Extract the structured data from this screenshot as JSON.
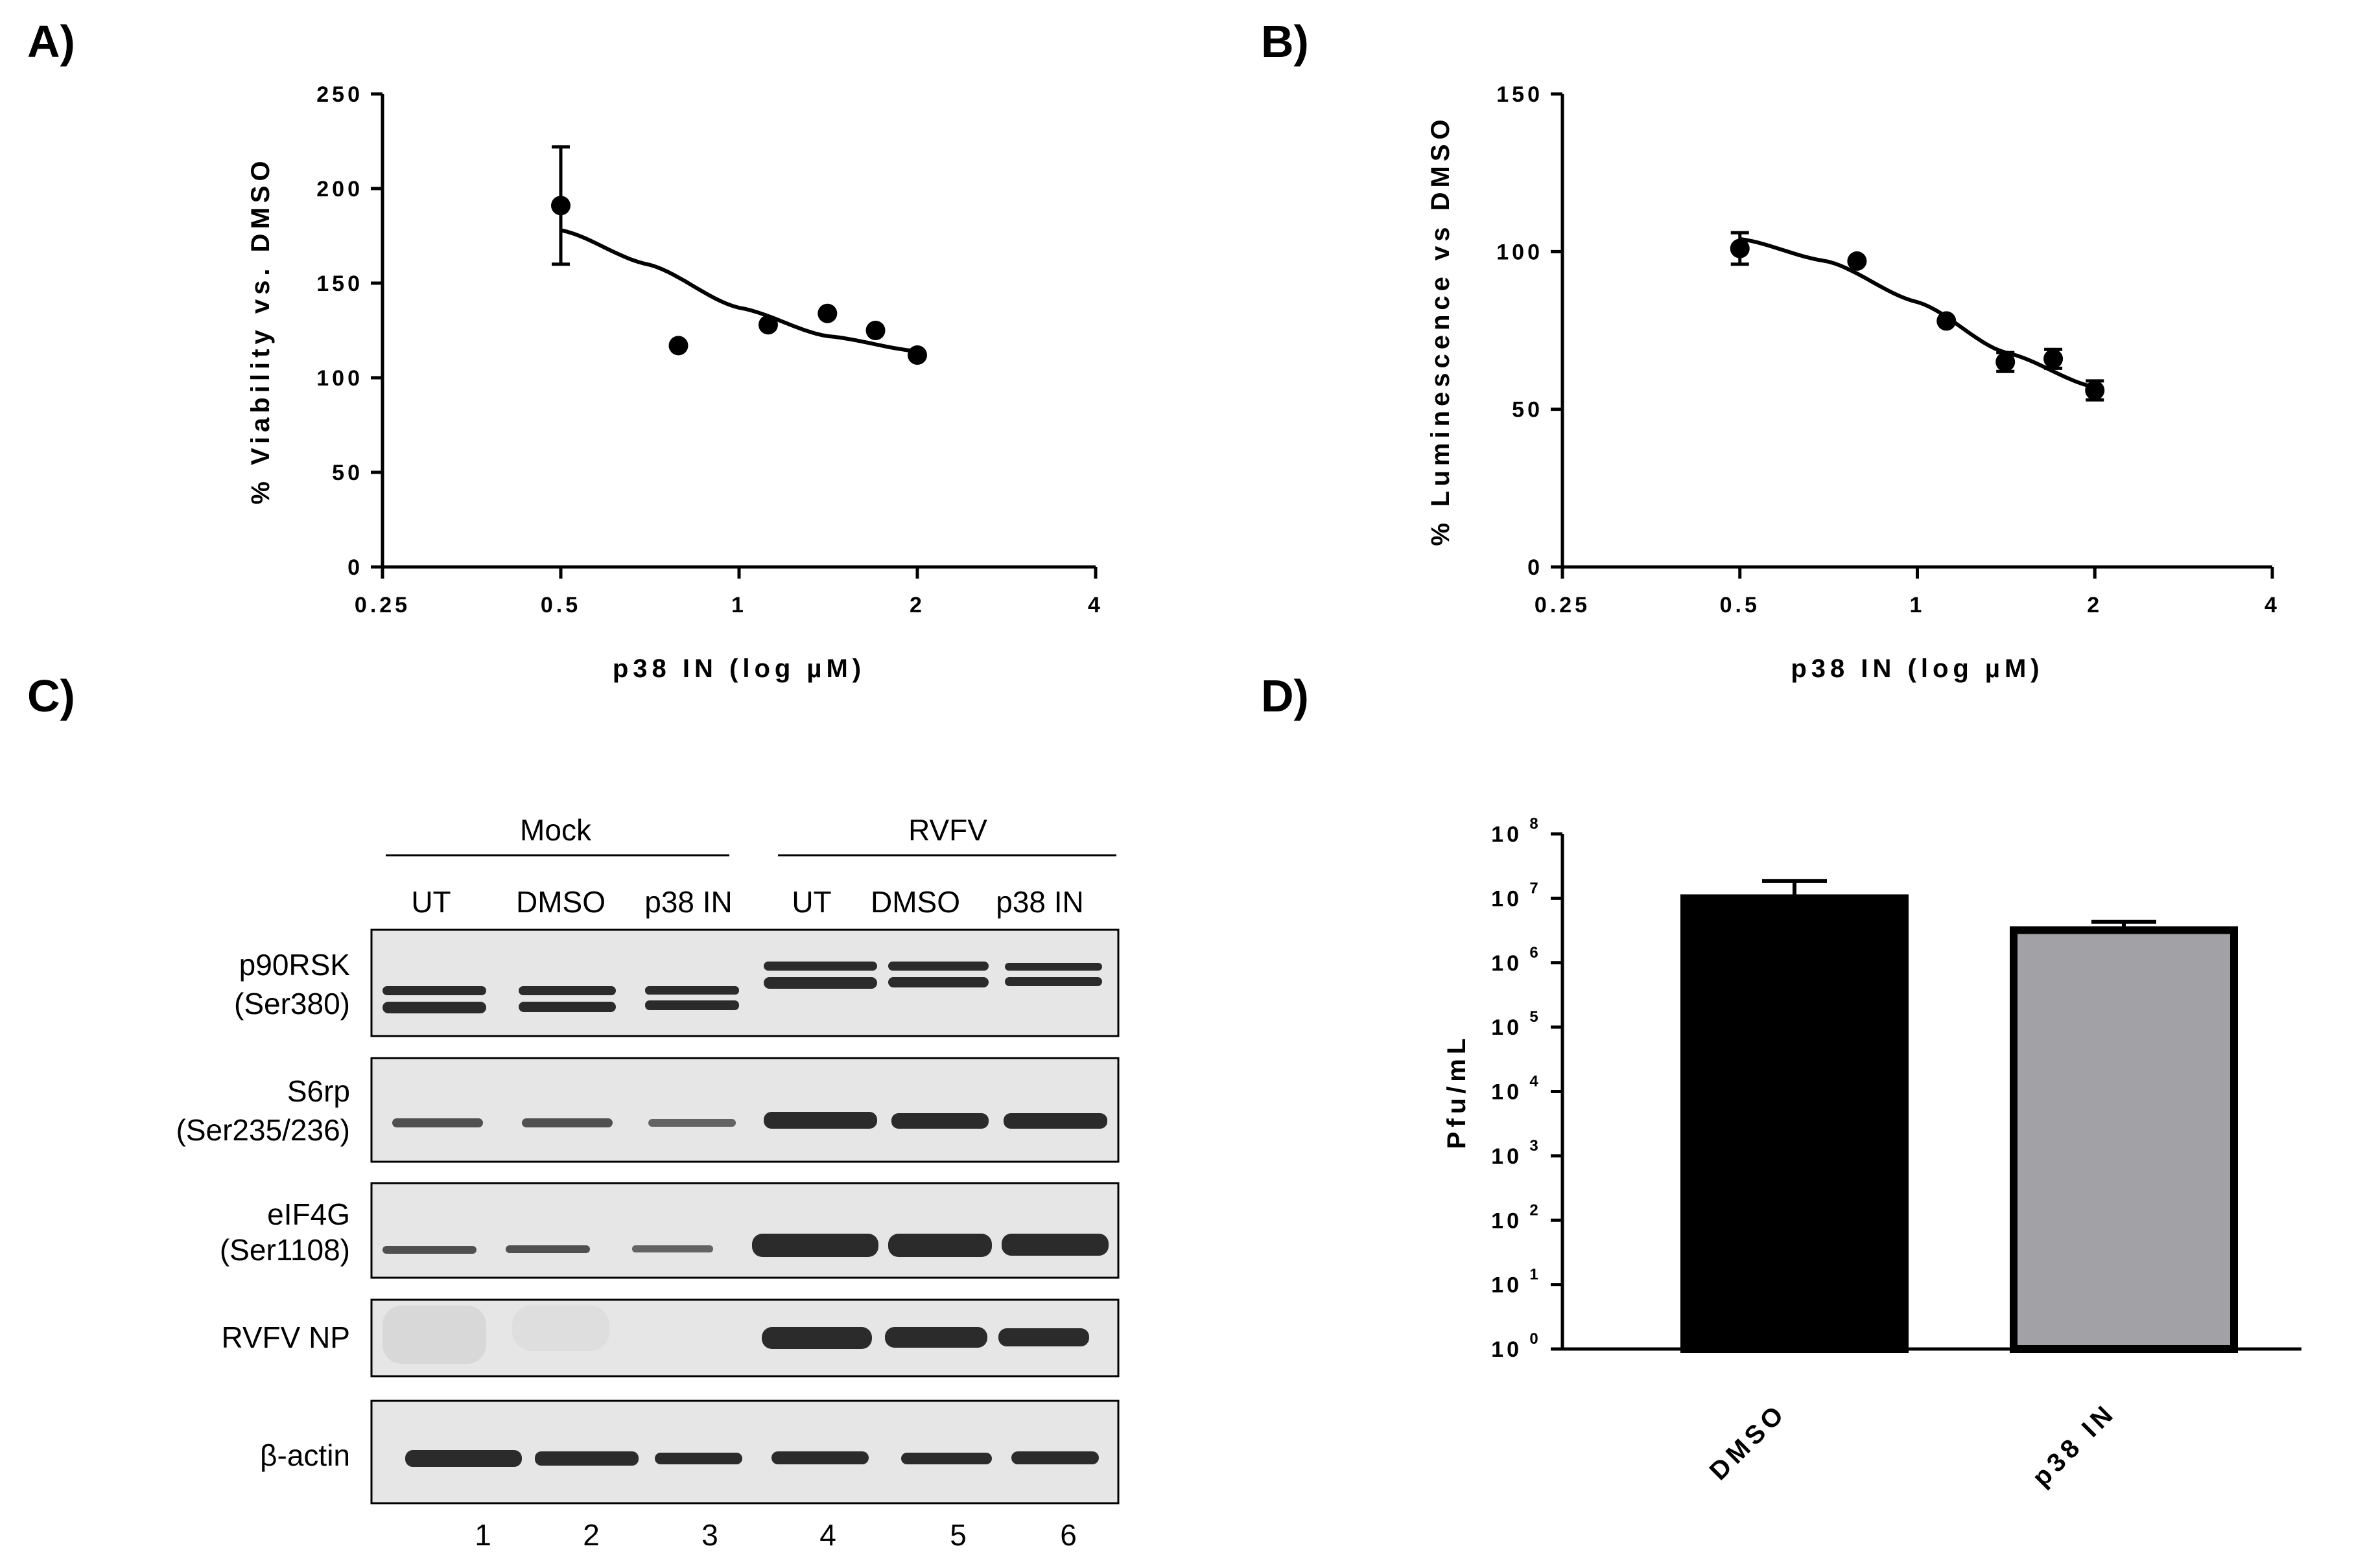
{
  "panels": {
    "a": "A)",
    "b": "B)",
    "c": "C)",
    "d": "D)"
  },
  "chart_data": [
    {
      "panel": "A)",
      "type": "scatter",
      "x_scale": "log2",
      "xlim": [
        0.25,
        4
      ],
      "ylim": [
        0,
        250
      ],
      "xticks": [
        "0.25",
        "0.5",
        "1",
        "2",
        "4"
      ],
      "yticks": [
        "0",
        "50",
        "100",
        "150",
        "200",
        "250"
      ],
      "xlabel": "p38 IN (log µM)",
      "ylabel": "% Viability vs. DMSO",
      "points": [
        {
          "x": 0.5,
          "y": 191,
          "err": 31
        },
        {
          "x": 0.79,
          "y": 117,
          "err": 0
        },
        {
          "x": 1.12,
          "y": 128,
          "err": 0
        },
        {
          "x": 1.41,
          "y": 134,
          "err": 0
        },
        {
          "x": 1.7,
          "y": 125,
          "err": 0
        },
        {
          "x": 2.0,
          "y": 112,
          "err": 0
        }
      ],
      "fit": [
        [
          0.5,
          178
        ],
        [
          0.7,
          160
        ],
        [
          1.0,
          137
        ],
        [
          1.41,
          122
        ],
        [
          2.0,
          114
        ]
      ],
      "grid": false
    },
    {
      "panel": "B)",
      "type": "scatter",
      "x_scale": "log2",
      "xlim": [
        0.25,
        4
      ],
      "ylim": [
        0,
        150
      ],
      "xticks": [
        "0.25",
        "0.5",
        "1",
        "2",
        "4"
      ],
      "yticks": [
        "0",
        "50",
        "100",
        "150"
      ],
      "xlabel": "p38 IN (log µM)",
      "ylabel": "% Luminescence vs DMSO",
      "points": [
        {
          "x": 0.5,
          "y": 101,
          "err": 5
        },
        {
          "x": 0.79,
          "y": 97,
          "err": 0
        },
        {
          "x": 1.12,
          "y": 78,
          "err": 0
        },
        {
          "x": 1.41,
          "y": 65,
          "err": 3
        },
        {
          "x": 1.7,
          "y": 66,
          "err": 3
        },
        {
          "x": 2.0,
          "y": 56,
          "err": 3
        }
      ],
      "fit": [
        [
          0.5,
          104
        ],
        [
          0.7,
          97
        ],
        [
          1.0,
          84
        ],
        [
          1.41,
          68
        ],
        [
          2.0,
          57
        ]
      ],
      "grid": false
    },
    {
      "panel": "D)",
      "type": "bar",
      "y_scale": "log10",
      "ylim": [
        1,
        100000000
      ],
      "yticks": [
        "10",
        "10",
        "10",
        "10",
        "10",
        "10",
        "10",
        "10",
        "10"
      ],
      "ytick_exponents": [
        "0",
        "1",
        "2",
        "3",
        "4",
        "5",
        "6",
        "7",
        "8"
      ],
      "ylabel": "Pfu/mL",
      "categories": [
        "DMSO",
        "p38 IN"
      ],
      "values": [
        10000000,
        3200000
      ],
      "errors_upper": [
        18500000,
        4300000
      ],
      "colors": [
        "#000000",
        "#a2a2a6"
      ],
      "grid": false
    }
  ],
  "blot": {
    "groups": [
      "Mock",
      "RVFV"
    ],
    "lanes": [
      "UT",
      "DMSO",
      "p38 IN",
      "UT",
      "DMSO",
      "p38 IN"
    ],
    "rows": [
      {
        "label1": "p90RSK",
        "label2": "(Ser380)"
      },
      {
        "label1": "S6rp",
        "label2": "(Ser235/236)"
      },
      {
        "label1": "eIF4G",
        "label2": "(Ser1108)"
      },
      {
        "label1": "RVFV NP",
        "label2": ""
      },
      {
        "label1": "β-actin",
        "label2": ""
      }
    ],
    "lane_numbers": [
      "1",
      "2",
      "3",
      "4",
      "5",
      "6"
    ]
  }
}
